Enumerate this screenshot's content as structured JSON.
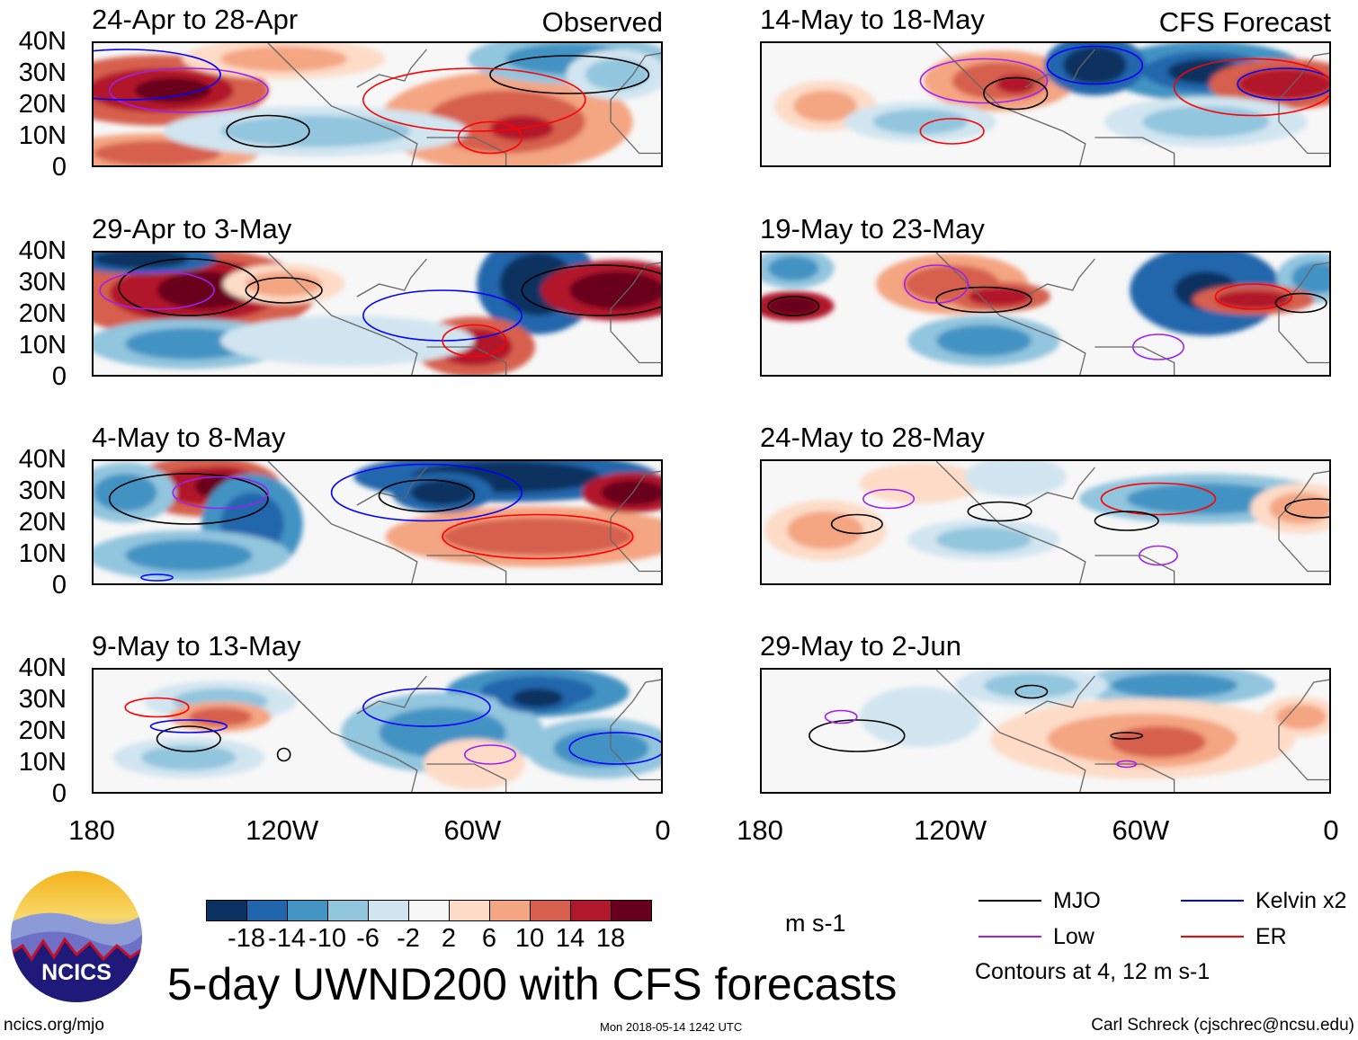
{
  "chart_data": {
    "type": "heatmap",
    "title": "5-day UWND200 with CFS forecasts",
    "variable": "200-hPa zonal wind anomaly",
    "units": "m s-1",
    "xlabel": "",
    "ylabel": "",
    "x_ticks": [
      "180",
      "120W",
      "60W",
      "0"
    ],
    "y_ticks": [
      "40N",
      "30N",
      "20N",
      "10N",
      "0"
    ],
    "xlim": [
      -180,
      0
    ],
    "ylim": [
      0,
      40
    ],
    "colorbar": {
      "levels": [
        "-18",
        "-14",
        "-10",
        "-6",
        "-2",
        "2",
        "6",
        "10",
        "14",
        "18"
      ],
      "colors": [
        "#0a3161",
        "#2166ac",
        "#4393c3",
        "#92c5de",
        "#d1e5f0",
        "#f7f7f7",
        "#fddbc7",
        "#f4a582",
        "#d6604d",
        "#b2182b",
        "#67001f"
      ]
    },
    "legend": [
      {
        "label": "MJO",
        "color": "#000000"
      },
      {
        "label": "Kelvin x2",
        "color": "#0000ff"
      },
      {
        "label": "Low",
        "color": "#a020f0"
      },
      {
        "label": "ER",
        "color": "#ff0000"
      }
    ],
    "contour_note": "Contours at 4, 12 m s-1",
    "panels": [
      {
        "title": "24-Apr to 28-Apr",
        "tag": "Observed"
      },
      {
        "title": "14-May to 18-May",
        "tag": "CFS Forecast"
      },
      {
        "title": "29-Apr to 3-May",
        "tag": ""
      },
      {
        "title": "19-May to 23-May",
        "tag": ""
      },
      {
        "title": "4-May to 8-May",
        "tag": ""
      },
      {
        "title": "24-May to 28-May",
        "tag": ""
      },
      {
        "title": "9-May to 13-May",
        "tag": ""
      },
      {
        "title": "29-May to 2-Jun",
        "tag": ""
      }
    ]
  },
  "logo": {
    "text": "NCICS"
  },
  "footer": {
    "url": "ncics.org/mjo",
    "timestamp": "Mon 2018-05-14 1242 UTC",
    "author": "Carl Schreck (cjschrec@ncsu.edu)"
  }
}
